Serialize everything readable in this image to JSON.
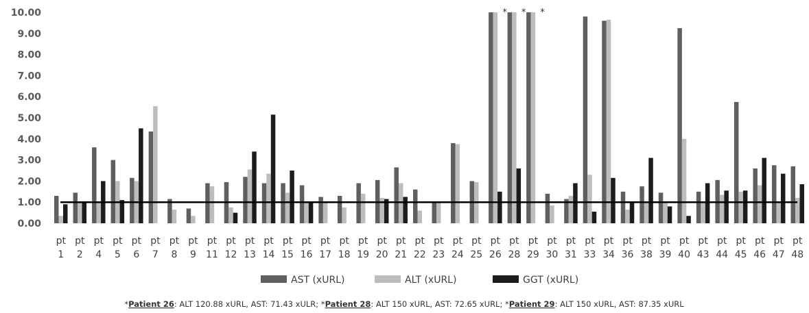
{
  "chart_data": {
    "type": "bar",
    "title": "",
    "xlabel": "",
    "ylabel": "",
    "ylim": [
      0,
      10
    ],
    "yticks": [
      "0.00",
      "1.00",
      "2.00",
      "3.00",
      "4.00",
      "5.00",
      "6.00",
      "7.00",
      "8.00",
      "9.00",
      "10.00"
    ],
    "grid": false,
    "legend_position": "bottom",
    "categories": [
      "1",
      "2",
      "4",
      "5",
      "6",
      "7",
      "8",
      "9",
      "11",
      "12",
      "13",
      "14",
      "15",
      "16",
      "17",
      "18",
      "19",
      "20",
      "21",
      "22",
      "23",
      "24",
      "25",
      "26",
      "28",
      "29",
      "30",
      "31",
      "33",
      "34",
      "36",
      "38",
      "39",
      "40",
      "43",
      "44",
      "45",
      "46",
      "47",
      "48"
    ],
    "category_prefix": "pt",
    "series": [
      {
        "name": "AST (xURL)",
        "color": "#5f5f5f",
        "values": [
          1.3,
          1.45,
          3.6,
          3.0,
          2.15,
          4.35,
          1.15,
          0.7,
          1.9,
          1.95,
          2.2,
          1.9,
          1.9,
          1.8,
          1.25,
          1.3,
          1.9,
          2.05,
          2.65,
          1.6,
          1.0,
          3.8,
          2.0,
          10.0,
          10.0,
          10.0,
          1.4,
          1.15,
          9.8,
          9.6,
          1.5,
          1.75,
          1.45,
          9.25,
          1.5,
          2.05,
          5.75,
          2.6,
          2.75,
          2.7
        ]
      },
      {
        "name": "ALT (xURL)",
        "color": "#bdbdbd",
        "values": [
          0.35,
          1.0,
          1.0,
          2.0,
          2.0,
          5.55,
          0.65,
          0.35,
          1.75,
          0.75,
          2.55,
          2.35,
          1.45,
          1.0,
          1.0,
          0.75,
          1.4,
          1.2,
          1.9,
          0.6,
          1.0,
          3.75,
          1.95,
          10.0,
          10.0,
          10.0,
          0.85,
          1.3,
          2.3,
          9.65,
          0.65,
          1.0,
          1.0,
          4.0,
          1.0,
          1.35,
          1.5,
          1.8,
          1.0,
          1.2
        ]
      },
      {
        "name": "GGT (xURL)",
        "color": "#1c1c1c",
        "values": [
          0.9,
          1.0,
          2.0,
          1.1,
          4.5,
          0,
          0,
          0,
          0,
          0.5,
          3.4,
          5.15,
          2.5,
          1.0,
          0,
          0,
          0,
          1.15,
          1.25,
          0,
          0,
          0,
          0,
          1.5,
          2.6,
          0,
          0,
          1.9,
          0.55,
          2.15,
          1.0,
          3.1,
          0.8,
          0.35,
          1.9,
          1.55,
          1.55,
          3.1,
          2.35,
          1.85
        ]
      }
    ],
    "reference_line": 1.0,
    "capped_markers": [
      {
        "category": "26",
        "mark": "*"
      },
      {
        "category": "28",
        "mark": "*"
      },
      {
        "category": "29",
        "mark": "*"
      }
    ],
    "footnote": [
      {
        "lead": "*",
        "bold": "Patient 26",
        "text": ": ALT 120.88 xURL, AST: 71.43 xULR;"
      },
      {
        "lead": "  *",
        "bold": "Patient 28",
        "text": ": ALT 150 xURL, AST: 72.65 xURL;"
      },
      {
        "lead": " *",
        "bold": "Patient 29",
        "text": ": ALT 150 xURL, AST: 87.35 xURL"
      }
    ]
  }
}
